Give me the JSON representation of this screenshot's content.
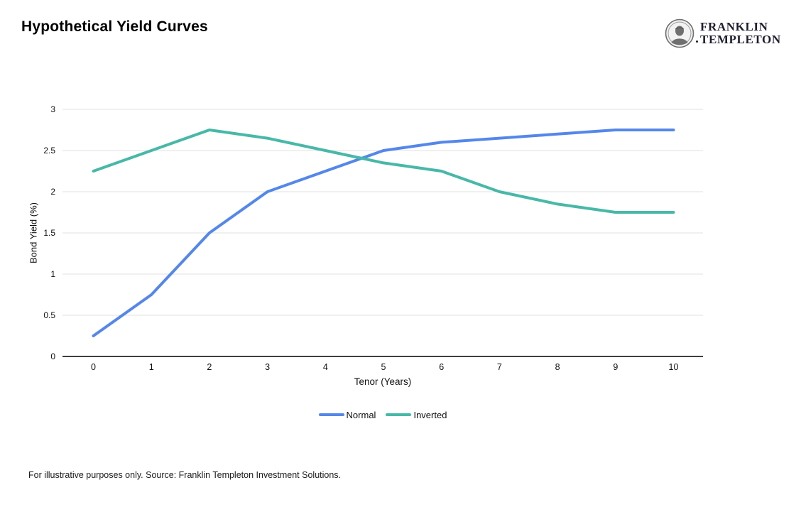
{
  "header": {
    "title": "Hypothetical Yield Curves"
  },
  "logo": {
    "line1": "FRANKLIN",
    "line2": "TEMPLETON"
  },
  "chart_data": {
    "type": "line",
    "title": "Hypothetical Yield Curves",
    "x": [
      0,
      1,
      2,
      3,
      4,
      5,
      6,
      7,
      8,
      9,
      10
    ],
    "series": [
      {
        "name": "Normal",
        "color": "#5587ea",
        "values": [
          0.25,
          0.75,
          1.5,
          2.0,
          2.25,
          2.5,
          2.6,
          2.65,
          2.7,
          2.75,
          2.75
        ]
      },
      {
        "name": "Inverted",
        "color": "#48b8a8",
        "values": [
          2.25,
          2.5,
          2.75,
          2.65,
          2.5,
          2.35,
          2.25,
          2.0,
          1.85,
          1.75,
          1.75
        ]
      }
    ],
    "xlabel": "Tenor (Years)",
    "ylabel": "Bond Yield (%)",
    "ylim": [
      0,
      3
    ],
    "yticks": [
      0,
      0.5,
      1,
      1.5,
      2,
      2.5,
      3
    ],
    "grid": "horizontal",
    "legend_position": "bottom"
  },
  "footnote": {
    "text": "For illustrative purposes only. Source: Franklin Templeton Investment Solutions."
  },
  "colors": {
    "gridline": "#e2e2e2",
    "axis_line": "#3f3f3f",
    "tick_text": "#111111",
    "normal_line": "#5587ea",
    "inverted_line": "#48b8a8",
    "logo_text": "#1e1e30"
  }
}
